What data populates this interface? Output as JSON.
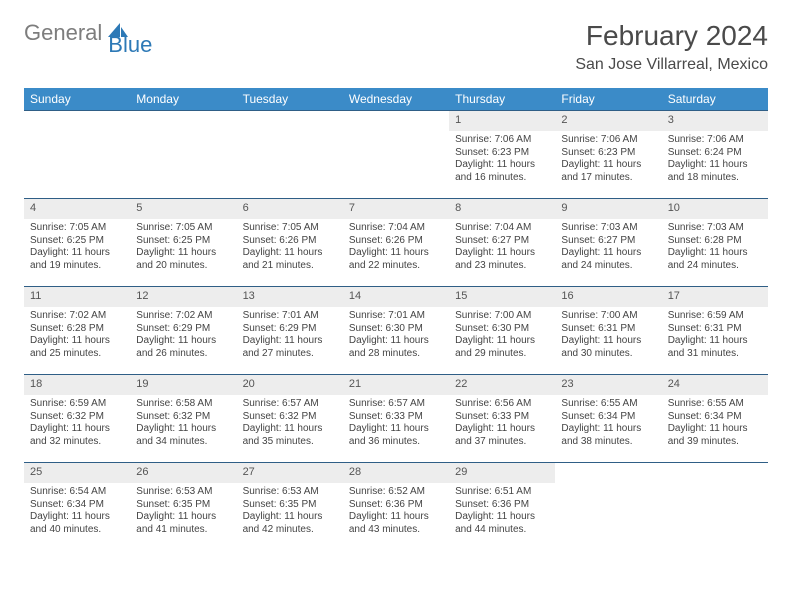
{
  "brand": {
    "word1": "General",
    "word2": "Blue",
    "color_gray": "#7d7d7d",
    "color_blue": "#2d79b6"
  },
  "title": "February 2024",
  "location": "San Jose Villarreal, Mexico",
  "header_bg": "#3b8bc8",
  "daynum_bg": "#ededed",
  "border_color": "#2f5e86",
  "weekdays": [
    "Sunday",
    "Monday",
    "Tuesday",
    "Wednesday",
    "Thursday",
    "Friday",
    "Saturday"
  ],
  "label_sunrise": "Sunrise: ",
  "label_sunset": "Sunset: ",
  "label_daylight": "Daylight: ",
  "weeks": [
    [
      null,
      null,
      null,
      null,
      {
        "n": "1",
        "sr": "7:06 AM",
        "ss": "6:23 PM",
        "dl1": "11 hours",
        "dl2": "and 16 minutes."
      },
      {
        "n": "2",
        "sr": "7:06 AM",
        "ss": "6:23 PM",
        "dl1": "11 hours",
        "dl2": "and 17 minutes."
      },
      {
        "n": "3",
        "sr": "7:06 AM",
        "ss": "6:24 PM",
        "dl1": "11 hours",
        "dl2": "and 18 minutes."
      }
    ],
    [
      {
        "n": "4",
        "sr": "7:05 AM",
        "ss": "6:25 PM",
        "dl1": "11 hours",
        "dl2": "and 19 minutes."
      },
      {
        "n": "5",
        "sr": "7:05 AM",
        "ss": "6:25 PM",
        "dl1": "11 hours",
        "dl2": "and 20 minutes."
      },
      {
        "n": "6",
        "sr": "7:05 AM",
        "ss": "6:26 PM",
        "dl1": "11 hours",
        "dl2": "and 21 minutes."
      },
      {
        "n": "7",
        "sr": "7:04 AM",
        "ss": "6:26 PM",
        "dl1": "11 hours",
        "dl2": "and 22 minutes."
      },
      {
        "n": "8",
        "sr": "7:04 AM",
        "ss": "6:27 PM",
        "dl1": "11 hours",
        "dl2": "and 23 minutes."
      },
      {
        "n": "9",
        "sr": "7:03 AM",
        "ss": "6:27 PM",
        "dl1": "11 hours",
        "dl2": "and 24 minutes."
      },
      {
        "n": "10",
        "sr": "7:03 AM",
        "ss": "6:28 PM",
        "dl1": "11 hours",
        "dl2": "and 24 minutes."
      }
    ],
    [
      {
        "n": "11",
        "sr": "7:02 AM",
        "ss": "6:28 PM",
        "dl1": "11 hours",
        "dl2": "and 25 minutes."
      },
      {
        "n": "12",
        "sr": "7:02 AM",
        "ss": "6:29 PM",
        "dl1": "11 hours",
        "dl2": "and 26 minutes."
      },
      {
        "n": "13",
        "sr": "7:01 AM",
        "ss": "6:29 PM",
        "dl1": "11 hours",
        "dl2": "and 27 minutes."
      },
      {
        "n": "14",
        "sr": "7:01 AM",
        "ss": "6:30 PM",
        "dl1": "11 hours",
        "dl2": "and 28 minutes."
      },
      {
        "n": "15",
        "sr": "7:00 AM",
        "ss": "6:30 PM",
        "dl1": "11 hours",
        "dl2": "and 29 minutes."
      },
      {
        "n": "16",
        "sr": "7:00 AM",
        "ss": "6:31 PM",
        "dl1": "11 hours",
        "dl2": "and 30 minutes."
      },
      {
        "n": "17",
        "sr": "6:59 AM",
        "ss": "6:31 PM",
        "dl1": "11 hours",
        "dl2": "and 31 minutes."
      }
    ],
    [
      {
        "n": "18",
        "sr": "6:59 AM",
        "ss": "6:32 PM",
        "dl1": "11 hours",
        "dl2": "and 32 minutes."
      },
      {
        "n": "19",
        "sr": "6:58 AM",
        "ss": "6:32 PM",
        "dl1": "11 hours",
        "dl2": "and 34 minutes."
      },
      {
        "n": "20",
        "sr": "6:57 AM",
        "ss": "6:32 PM",
        "dl1": "11 hours",
        "dl2": "and 35 minutes."
      },
      {
        "n": "21",
        "sr": "6:57 AM",
        "ss": "6:33 PM",
        "dl1": "11 hours",
        "dl2": "and 36 minutes."
      },
      {
        "n": "22",
        "sr": "6:56 AM",
        "ss": "6:33 PM",
        "dl1": "11 hours",
        "dl2": "and 37 minutes."
      },
      {
        "n": "23",
        "sr": "6:55 AM",
        "ss": "6:34 PM",
        "dl1": "11 hours",
        "dl2": "and 38 minutes."
      },
      {
        "n": "24",
        "sr": "6:55 AM",
        "ss": "6:34 PM",
        "dl1": "11 hours",
        "dl2": "and 39 minutes."
      }
    ],
    [
      {
        "n": "25",
        "sr": "6:54 AM",
        "ss": "6:34 PM",
        "dl1": "11 hours",
        "dl2": "and 40 minutes."
      },
      {
        "n": "26",
        "sr": "6:53 AM",
        "ss": "6:35 PM",
        "dl1": "11 hours",
        "dl2": "and 41 minutes."
      },
      {
        "n": "27",
        "sr": "6:53 AM",
        "ss": "6:35 PM",
        "dl1": "11 hours",
        "dl2": "and 42 minutes."
      },
      {
        "n": "28",
        "sr": "6:52 AM",
        "ss": "6:36 PM",
        "dl1": "11 hours",
        "dl2": "and 43 minutes."
      },
      {
        "n": "29",
        "sr": "6:51 AM",
        "ss": "6:36 PM",
        "dl1": "11 hours",
        "dl2": "and 44 minutes."
      },
      null,
      null
    ]
  ]
}
